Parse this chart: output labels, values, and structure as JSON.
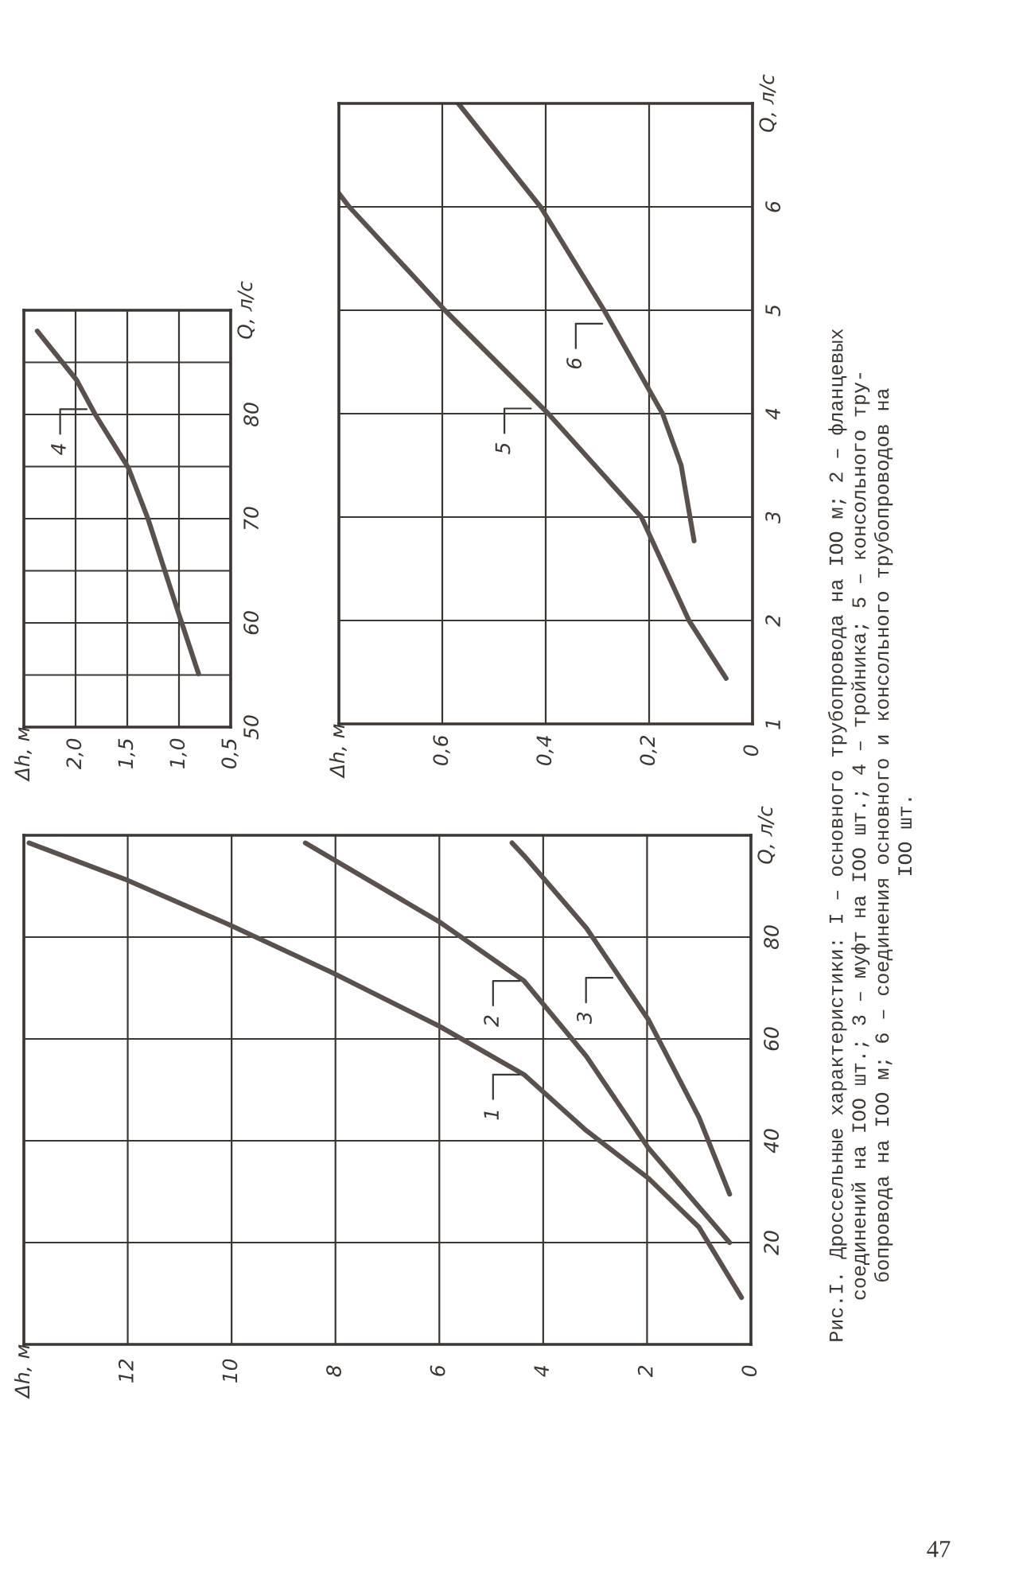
{
  "chart_data": [
    {
      "type": "line",
      "ylabel": "Q, л/с",
      "xlim": [
        14,
        0
      ],
      "ylim": [
        0,
        100
      ],
      "xticks": [
        0,
        2,
        4,
        6,
        8,
        10,
        12,
        {
          "value": 14,
          "label": "Δh, м"
        }
      ],
      "yticks": [
        20,
        40,
        60,
        80
      ],
      "grid": true,
      "series": [
        {
          "color": "#5a504c",
          "x": [
            13.9,
            12.06,
            10.06,
            8.06,
            6.0,
            4.37,
            3.17,
            1.97,
            1.0,
            0.18
          ],
          "values": [
            98.5,
            91.4,
            82.5,
            73,
            62.5,
            53,
            42,
            32.6,
            23,
            9.2
          ]
        },
        {
          "color": "#5a504c",
          "x": [
            8.58,
            6.0,
            4.37,
            3.17,
            1.97,
            1.0,
            0.41
          ],
          "values": [
            98.5,
            83,
            71.4,
            56.6,
            38.5,
            27,
            20
          ]
        },
        {
          "color": "#5a504c",
          "x": [
            4.6,
            4.37,
            3.17,
            1.97,
            1.0,
            0.41
          ],
          "values": [
            98.5,
            96,
            81.8,
            63.7,
            44.6,
            29.5
          ]
        }
      ],
      "annotations": [
        "Рис.I. Дроссельные характеристики: I – основного трубопровода на IOO м; 2 – фланцевых\nсоединений на IOO шт.; 3 – муфт на IOO шт.; 4 – тройника; 5 – консольного тру-\nбопровода на IOO м; 6 – соединения основного и консольного трубопроводов на\nIOO шт.",
        "47",
        {
          "text": "1",
          "x": 4.37,
          "y": 53
        },
        {
          "text": "2",
          "x": 4.37,
          "y": 71.4
        },
        {
          "text": "3",
          "x": 2.58,
          "y": 72
        }
      ]
    },
    {
      "type": "line",
      "ylabel": "Q, л/с",
      "xlim": [
        2.5,
        0.5
      ],
      "ylim": [
        50,
        90
      ],
      "xticks": [
        {
          "value": 0.5,
          "label": "0,5"
        },
        {
          "value": 1,
          "label": "1,0"
        },
        {
          "value": 1.5,
          "label": "1,5"
        },
        {
          "value": 2,
          "label": "2,0"
        },
        {
          "value": 2.5,
          "label": "Δh, м"
        }
      ],
      "yticks": [
        50,
        {
          "value": 55,
          "label": null
        },
        60,
        {
          "value": 65,
          "label": null
        },
        70,
        {
          "value": 75,
          "label": null
        },
        80,
        {
          "value": 85,
          "label": null
        }
      ],
      "grid": true,
      "series": [
        {
          "color": "#5a504c",
          "x": [
            0.81,
            1.0,
            1.3,
            1.49,
            1.81,
            1.99,
            2.37
          ],
          "values": [
            55.1,
            60.8,
            70,
            74.9,
            80,
            83.3,
            88
          ]
        }
      ],
      "annotations": [
        {
          "text": "4",
          "x": 1.85,
          "y": 80.5
        }
      ]
    },
    {
      "type": "line",
      "ylabel": "Q, л/с",
      "xlim": [
        0.8,
        0
      ],
      "ylim": [
        1,
        7
      ],
      "xticks": [
        0,
        {
          "value": 0.2,
          "label": "0,2"
        },
        {
          "value": 0.4,
          "label": "0,4"
        },
        {
          "value": 0.6,
          "label": "0,6"
        },
        {
          "value": 0.8,
          "label": "Δh, м"
        }
      ],
      "yticks": [
        1,
        2,
        3,
        4,
        5,
        6
      ],
      "grid": true,
      "series": [
        {
          "color": "#5a504c",
          "x": [
            0.051,
            0.123,
            0.215,
            0.395,
            0.595,
            0.78,
            0.8
          ],
          "values": [
            1.44,
            2,
            3,
            4,
            5,
            6,
            6.13
          ]
        },
        {
          "color": "#5a504c",
          "x": [
            0.113,
            0.138,
            0.174,
            0.287,
            0.41,
            0.569
          ],
          "values": [
            2.77,
            3.5,
            4,
            5,
            6,
            7
          ]
        }
      ],
      "annotations": [
        {
          "text": "5",
          "x": 0.42,
          "y": 4.05
        },
        {
          "text": "6",
          "x": 0.282,
          "y": 4.87
        }
      ]
    }
  ]
}
